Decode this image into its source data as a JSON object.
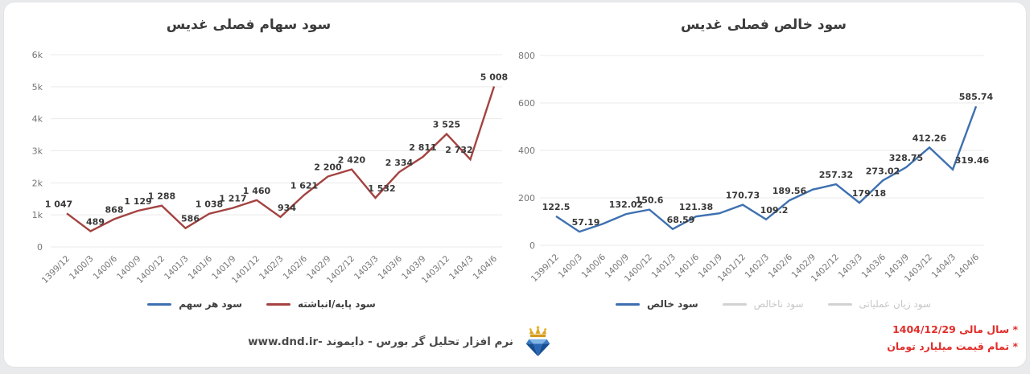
{
  "window": {
    "background": "#e9eaeb",
    "card_background": "#ffffff"
  },
  "chart_data": [
    {
      "id": "quarterly-eps",
      "type": "line",
      "title": "سود سهام فصلی غدیس",
      "grid": true,
      "legend_position": "bottom",
      "categories": [
        "1399/12",
        "1400/3",
        "1400/6",
        "1400/9",
        "1400/12",
        "1401/3",
        "1401/6",
        "1401/9",
        "1401/12",
        "1402/3",
        "1402/6",
        "1402/9",
        "1402/12",
        "1403/3",
        "1403/6",
        "1403/9",
        "1403/12",
        "1404/3",
        "1404/6"
      ],
      "y_axis": {
        "min": 0,
        "max": 6000,
        "tick_labels": [
          "6k",
          "5k",
          "4k",
          "3k",
          "2k",
          "1k",
          "0"
        ]
      },
      "series": [
        {
          "name": "سود هر سهم",
          "color": "#3e70b0",
          "plotted": false,
          "muted": false,
          "values": null,
          "point_labels": null
        },
        {
          "name": "سود پایه/انباشته",
          "color": "#a34341",
          "plotted": true,
          "muted": false,
          "values": [
            1047,
            489,
            868,
            1129,
            1288,
            586,
            1038,
            1217,
            1460,
            934,
            1621,
            2200,
            2420,
            1532,
            2334,
            2811,
            3525,
            2732,
            5008
          ],
          "point_labels": [
            "1 047",
            "489",
            "868",
            "1 129",
            "1 288",
            "586",
            "1 038",
            "1 217",
            "1 460",
            "934",
            "1 621",
            "2 200",
            "2 420",
            "1 532",
            "2 334",
            "2 811",
            "3 525",
            "2 732",
            "5 008"
          ]
        }
      ]
    },
    {
      "id": "quarterly-net-profit",
      "type": "line",
      "title": "سود خالص فصلی غدیس",
      "grid": true,
      "legend_position": "bottom",
      "categories": [
        "1399/12",
        "1400/3",
        "1400/6",
        "1400/9",
        "1400/12",
        "1401/3",
        "1401/6",
        "1401/9",
        "1401/12",
        "1402/3",
        "1402/6",
        "1402/9",
        "1402/12",
        "1403/3",
        "1403/6",
        "1403/9",
        "1403/12",
        "1404/3",
        "1404/6"
      ],
      "y_axis": {
        "min": 0,
        "max": 800,
        "tick_labels": [
          "800",
          "600",
          "400",
          "200",
          "0"
        ]
      },
      "series": [
        {
          "name": "سود خالص",
          "color": "#3e70b0",
          "plotted": true,
          "muted": false,
          "values": [
            122.5,
            57.19,
            90,
            132.02,
            150.6,
            68.59,
            121.38,
            135,
            170.73,
            109.2,
            189.56,
            235,
            257.32,
            179.18,
            273.02,
            328.75,
            412.26,
            319.46,
            585.74
          ],
          "point_labels": [
            "122.5",
            "57.19",
            null,
            "132.02",
            "150.6",
            "68.59",
            "121.38",
            null,
            "170.73",
            "109.2",
            "189.56",
            null,
            "257.32",
            "179.18",
            "273.02",
            "328.75",
            "412.26",
            "319.46",
            "585.74"
          ]
        },
        {
          "name": "سود ناخالص",
          "color": "#d2d2d2",
          "plotted": false,
          "muted": true,
          "values": null,
          "point_labels": null
        },
        {
          "name": "سود زیان عملیاتی",
          "color": "#d2d2d2",
          "plotted": false,
          "muted": true,
          "values": null,
          "point_labels": null
        }
      ]
    }
  ],
  "footer": {
    "brand": "نرم افزار تحلیل گر بورس - دایموند -www.dnd.ir",
    "logo": "diamond-crown-logo"
  },
  "notes": {
    "color": "#e22d2a",
    "lines": [
      "* سال مالی 1404/12/29",
      "* تمام قیمت میلیارد تومان"
    ]
  }
}
